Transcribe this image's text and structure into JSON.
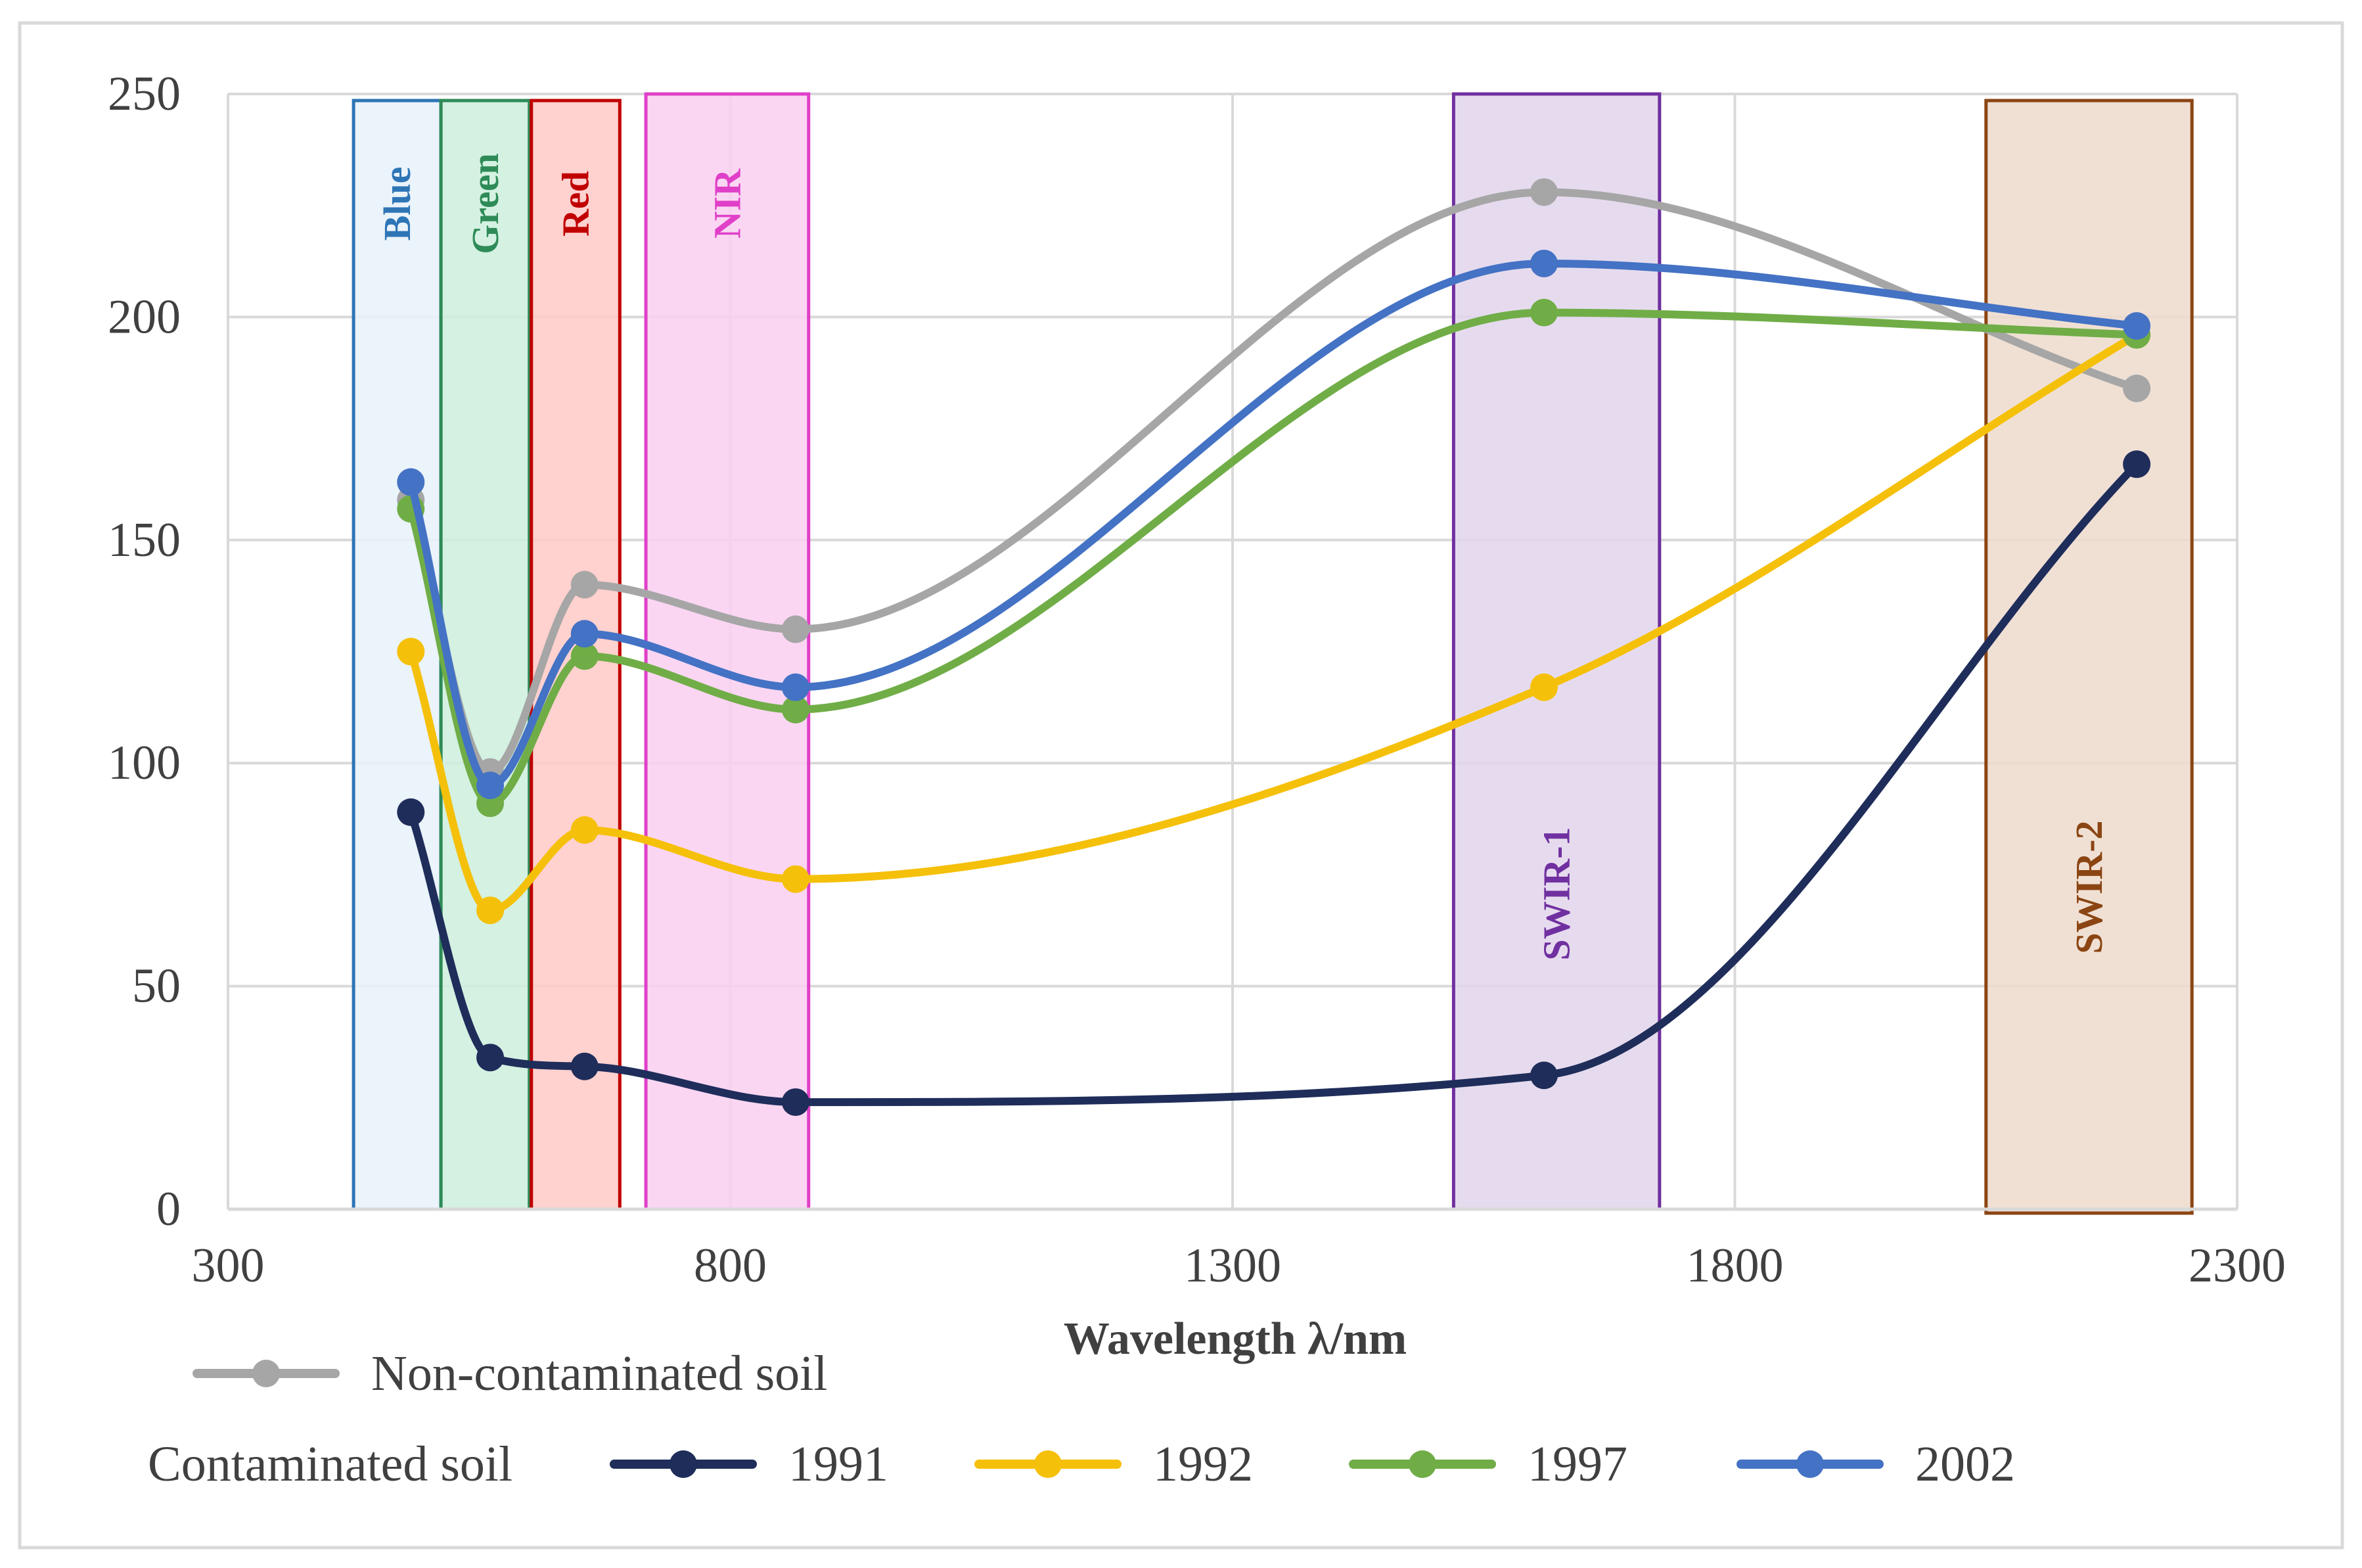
{
  "chart_data": {
    "type": "line",
    "title": "",
    "xlabel": "Wavelength λ/nm",
    "ylabel": "",
    "xlim": [
      300,
      2300
    ],
    "ylim": [
      0,
      250
    ],
    "grid": true,
    "x_ticks": [
      "300",
      "800",
      "1300",
      "1800",
      "2300"
    ],
    "y_ticks": [
      "0",
      "50",
      "100",
      "150",
      "200",
      "250"
    ],
    "bands": [
      {
        "name": "Blue",
        "start": 425,
        "end": 512,
        "color": "#2E75B6",
        "fill": "#E8F1FA"
      },
      {
        "name": "Green",
        "start": 512,
        "end": 600,
        "color": "#2E8B57",
        "fill": "#CCEEDD"
      },
      {
        "name": "Red",
        "start": 602,
        "end": 690,
        "color": "#C00000",
        "fill": "#FFC9C7"
      },
      {
        "name": "NIR",
        "start": 716,
        "end": 878,
        "color": "#E040C8",
        "fill": "#F9CFF1"
      },
      {
        "name": "SWIR-1",
        "start": 1520,
        "end": 1725,
        "color": "#7030A0",
        "fill": "#E2D5EB"
      },
      {
        "name": "SWIR-2",
        "start": 2050,
        "end": 2255,
        "color": "#8B4513",
        "fill": "#EDDBCD"
      }
    ],
    "x": [
      482,
      561,
      655,
      865,
      1610,
      2200
    ],
    "series": [
      {
        "name": "Non-contaminated soil",
        "color": "#A6A6A6",
        "values": [
          159,
          98,
          140,
          130,
          228,
          184
        ]
      },
      {
        "name": "1991",
        "color": "#1F2D5A",
        "values": [
          89,
          34,
          32,
          24,
          30,
          167
        ]
      },
      {
        "name": "1992",
        "color": "#F5C00A",
        "values": [
          125,
          67,
          85,
          74,
          117,
          196
        ]
      },
      {
        "name": "1997",
        "color": "#70AD47",
        "values": [
          157,
          91,
          124,
          112,
          201,
          196
        ]
      },
      {
        "name": "2002",
        "color": "#4472C4",
        "values": [
          163,
          95,
          129,
          117,
          212,
          198
        ]
      }
    ],
    "legend": {
      "group_label": "Contaminated soil",
      "placement": "bottom"
    }
  }
}
